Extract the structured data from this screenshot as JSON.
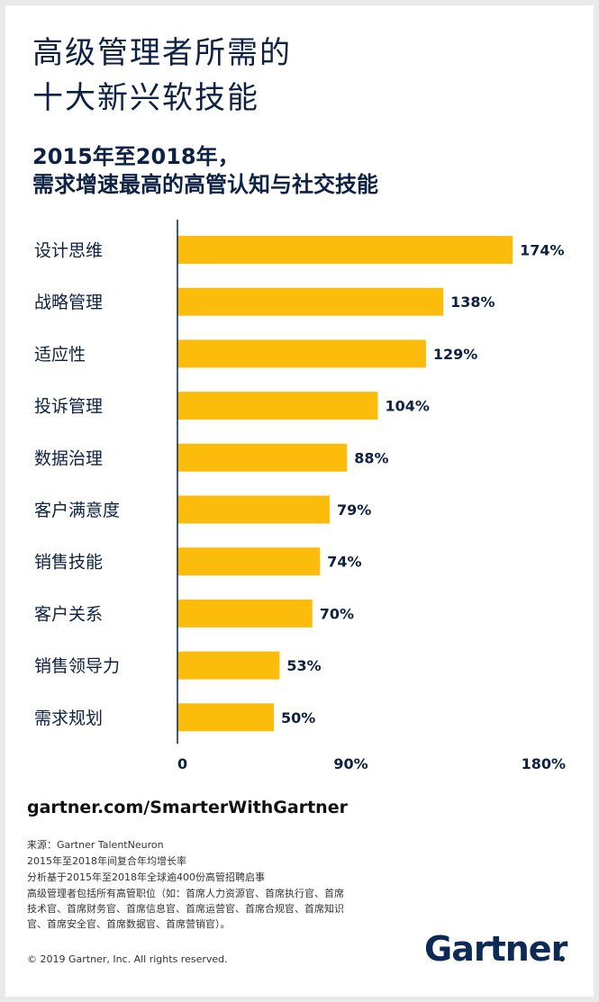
{
  "header": {
    "title_line1": "高级管理者所需的",
    "title_line2": "十大新兴软技能",
    "subtitle_line1": "2015年至2018年，",
    "subtitle_line2": "需求增速最高的高管认知与社交技能"
  },
  "chart_data": {
    "type": "bar",
    "orientation": "horizontal",
    "categories": [
      "设计思维",
      "战略管理",
      "适应性",
      "投诉管理",
      "数据治理",
      "客户满意度",
      "销售技能",
      "客户关系",
      "销售领导力",
      "需求规划"
    ],
    "values": [
      174,
      138,
      129,
      104,
      88,
      79,
      74,
      70,
      53,
      50
    ],
    "value_labels": [
      "174%",
      "138%",
      "129%",
      "104%",
      "88%",
      "79%",
      "74%",
      "70%",
      "53%",
      "50%"
    ],
    "x_ticks": [
      0,
      90,
      180
    ],
    "x_tick_labels": [
      "0",
      "90%",
      "180%"
    ],
    "xlim": [
      0,
      180
    ],
    "grid": false,
    "bar_color": "#fbbc0c"
  },
  "footer": {
    "site": "gartner.com/SmarterWithGartner",
    "notes": [
      "来源：Gartner TalentNeuron",
      "2015年至2018年间复合年均增长率",
      "分析基于2015年至2018年全球逾400份高管招聘启事",
      "高级管理者包括所有高管职位（如：首席人力资源官、首席执行官、首席技术官、首席财务官、首席信息官、首席运营官、首席合规官、首席知识官、首席安全官、首席数据官、首席营销官）。"
    ],
    "copyright": "© 2019 Gartner, Inc. All rights reserved.",
    "logo": "Gartner"
  },
  "colors": {
    "navy": "#0d2144",
    "bar": "#fbbc0c",
    "logo": "#0d2a57"
  }
}
